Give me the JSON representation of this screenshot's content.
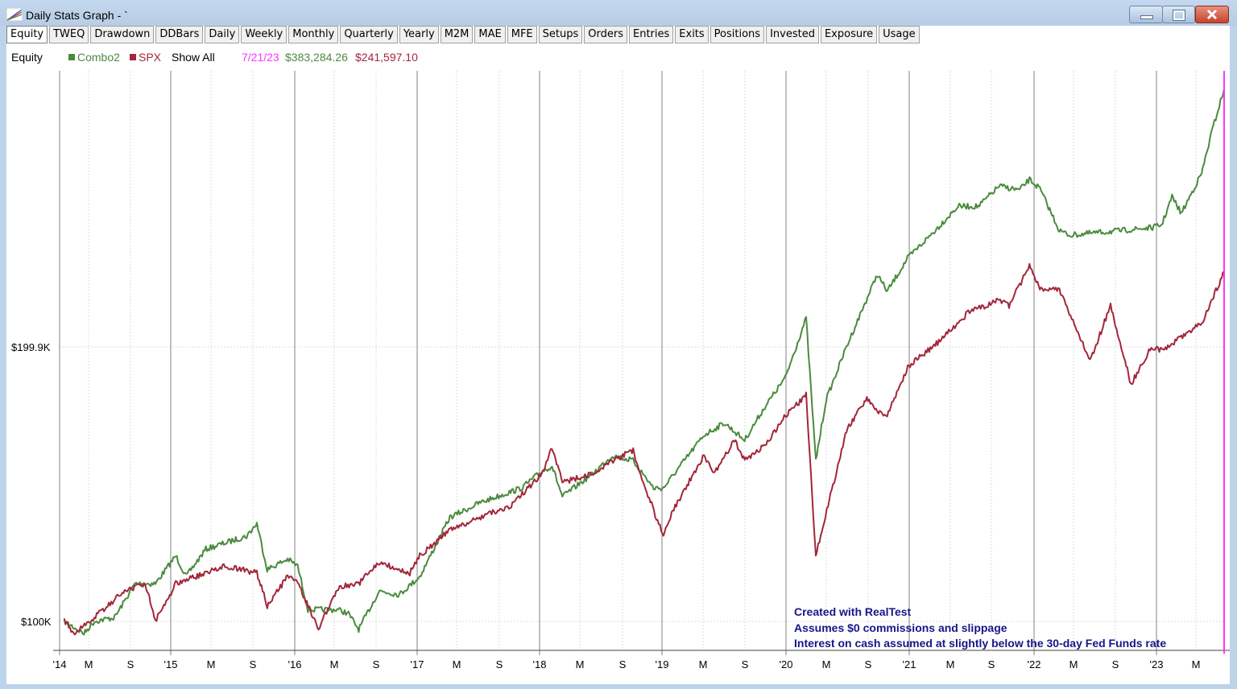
{
  "window": {
    "title": "Daily Stats Graph - `",
    "buttons": [
      "minimize",
      "maximize",
      "close"
    ]
  },
  "tabs": [
    {
      "label": "Equity",
      "active": true
    },
    {
      "label": "TWEQ"
    },
    {
      "label": "Drawdown"
    },
    {
      "label": "DDBars"
    },
    {
      "label": "Daily"
    },
    {
      "label": "Weekly"
    },
    {
      "label": "Monthly"
    },
    {
      "label": "Quarterly"
    },
    {
      "label": "Yearly"
    },
    {
      "label": "M2M"
    },
    {
      "label": "MAE"
    },
    {
      "label": "MFE"
    },
    {
      "label": "Setups"
    },
    {
      "label": "Orders"
    },
    {
      "label": "Entries"
    },
    {
      "label": "Exits"
    },
    {
      "label": "Positions"
    },
    {
      "label": "Invested"
    },
    {
      "label": "Exposure"
    },
    {
      "label": "Usage"
    }
  ],
  "legend": {
    "chart_label": "Equity",
    "series_1": "Combo2",
    "series_2": "SPX",
    "show_all": "Show All",
    "cursor_date": "7/21/23",
    "cursor_value_1": "$383,284.26",
    "cursor_value_2": "$241,597.10"
  },
  "colors": {
    "combo2": "#4b8a3e",
    "spx": "#a3263a",
    "cursor": "#ff33ff",
    "annotation": "#16168a"
  },
  "annotations": [
    "Created with RealTest",
    "Assumes $0 commissions and slippage",
    "Interest on cash assumed at slightly below the 30-day Fed Funds rate"
  ],
  "chart_data": {
    "type": "line",
    "title": "Equity",
    "xlabel": "",
    "ylabel": "",
    "y_scale": "log",
    "y_tick_labels": [
      "$100K",
      "$199.9K"
    ],
    "x_tick_labels": [
      "'14",
      "M",
      "S",
      "'15",
      "M",
      "S",
      "'16",
      "M",
      "S",
      "'17",
      "M",
      "S",
      "'18",
      "M",
      "S",
      "'19",
      "M",
      "S",
      "'20",
      "M",
      "S",
      "'21",
      "M",
      "S",
      "'22",
      "M",
      "S",
      "'23",
      "M"
    ],
    "x_range": [
      "2014-01",
      "2023-07-21"
    ],
    "grid": true,
    "legend_position": "top-left",
    "series": [
      {
        "name": "Combo2",
        "color": "#4b8a3e",
        "final_value": 383284.26,
        "points": [
          [
            "2014-01",
            100000
          ],
          [
            "2014-03",
            97000
          ],
          [
            "2014-04",
            100000
          ],
          [
            "2014-06",
            101000
          ],
          [
            "2014-08",
            110000
          ],
          [
            "2014-10",
            110000
          ],
          [
            "2014-12",
            118000
          ],
          [
            "2015-01",
            112000
          ],
          [
            "2015-03",
            120000
          ],
          [
            "2015-05",
            122000
          ],
          [
            "2015-07",
            124000
          ],
          [
            "2015-08",
            128000
          ],
          [
            "2015-09",
            114000
          ],
          [
            "2015-11",
            117000
          ],
          [
            "2015-12",
            115000
          ],
          [
            "2016-01",
            103000
          ],
          [
            "2016-04",
            103000
          ],
          [
            "2016-05",
            102000
          ],
          [
            "2016-06",
            98000
          ],
          [
            "2016-08",
            108000
          ],
          [
            "2016-10",
            107000
          ],
          [
            "2016-12",
            112000
          ],
          [
            "2017-03",
            130000
          ],
          [
            "2017-06",
            135000
          ],
          [
            "2017-10",
            140000
          ],
          [
            "2017-12",
            146000
          ],
          [
            "2018-01",
            148000
          ],
          [
            "2018-02",
            137000
          ],
          [
            "2018-05",
            145000
          ],
          [
            "2018-07",
            152000
          ],
          [
            "2018-09",
            150000
          ],
          [
            "2018-11",
            140000
          ],
          [
            "2018-12",
            140000
          ],
          [
            "2019-01",
            145000
          ],
          [
            "2019-04",
            160000
          ],
          [
            "2019-06",
            165000
          ],
          [
            "2019-08",
            158000
          ],
          [
            "2019-10",
            172000
          ],
          [
            "2019-12",
            185000
          ],
          [
            "2020-02",
            215000
          ],
          [
            "2020-03",
            150000
          ],
          [
            "2020-04",
            175000
          ],
          [
            "2020-06",
            200000
          ],
          [
            "2020-09",
            240000
          ],
          [
            "2020-10",
            230000
          ],
          [
            "2020-12",
            250000
          ],
          [
            "2021-03",
            270000
          ],
          [
            "2021-05",
            285000
          ],
          [
            "2021-07",
            285000
          ],
          [
            "2021-09",
            300000
          ],
          [
            "2021-11",
            297000
          ],
          [
            "2021-12",
            305000
          ],
          [
            "2022-01",
            298000
          ],
          [
            "2022-03",
            268000
          ],
          [
            "2022-04",
            265000
          ],
          [
            "2022-12",
            270000
          ],
          [
            "2023-01",
            272000
          ],
          [
            "2023-02",
            292000
          ],
          [
            "2023-03",
            280000
          ],
          [
            "2023-05",
            310000
          ],
          [
            "2023-06",
            345000
          ],
          [
            "2023-07-21",
            383284.26
          ]
        ]
      },
      {
        "name": "SPX",
        "color": "#a3263a",
        "final_value": 241597.1,
        "points": [
          [
            "2014-01",
            100000
          ],
          [
            "2014-02",
            97000
          ],
          [
            "2014-04",
            101000
          ],
          [
            "2014-07",
            108000
          ],
          [
            "2014-09",
            110000
          ],
          [
            "2014-10",
            100000
          ],
          [
            "2014-12",
            110000
          ],
          [
            "2015-03",
            113000
          ],
          [
            "2015-05",
            115000
          ],
          [
            "2015-08",
            113000
          ],
          [
            "2015-09",
            104000
          ],
          [
            "2015-11",
            112000
          ],
          [
            "2015-12",
            110000
          ],
          [
            "2016-01",
            104000
          ],
          [
            "2016-02",
            98000
          ],
          [
            "2016-04",
            109000
          ],
          [
            "2016-06",
            110000
          ],
          [
            "2016-08",
            116000
          ],
          [
            "2016-11",
            113000
          ],
          [
            "2016-12",
            118000
          ],
          [
            "2017-03",
            126000
          ],
          [
            "2017-06",
            130000
          ],
          [
            "2017-09",
            134000
          ],
          [
            "2017-12",
            145000
          ],
          [
            "2018-01",
            155000
          ],
          [
            "2018-02",
            142000
          ],
          [
            "2018-05",
            145000
          ],
          [
            "2018-08",
            152000
          ],
          [
            "2018-09",
            154000
          ],
          [
            "2018-10",
            142000
          ],
          [
            "2018-12",
            124000
          ],
          [
            "2019-01",
            133000
          ],
          [
            "2019-04",
            152000
          ],
          [
            "2019-05",
            145000
          ],
          [
            "2019-07",
            158000
          ],
          [
            "2019-08",
            150000
          ],
          [
            "2019-10",
            156000
          ],
          [
            "2019-12",
            168000
          ],
          [
            "2020-02",
            177000
          ],
          [
            "2020-03",
            118000
          ],
          [
            "2020-06",
            162000
          ],
          [
            "2020-08",
            176000
          ],
          [
            "2020-09",
            170000
          ],
          [
            "2020-10",
            168000
          ],
          [
            "2020-12",
            190000
          ],
          [
            "2021-03",
            202000
          ],
          [
            "2021-06",
            218000
          ],
          [
            "2021-09",
            225000
          ],
          [
            "2021-10",
            222000
          ],
          [
            "2021-12",
            245000
          ],
          [
            "2022-01",
            232000
          ],
          [
            "2022-03",
            231000
          ],
          [
            "2022-06",
            193000
          ],
          [
            "2022-08",
            222000
          ],
          [
            "2022-10",
            182000
          ],
          [
            "2022-12",
            200000
          ],
          [
            "2023-01",
            198000
          ],
          [
            "2023-03",
            205000
          ],
          [
            "2023-05",
            212000
          ],
          [
            "2023-07-21",
            241597.1
          ]
        ]
      }
    ]
  }
}
